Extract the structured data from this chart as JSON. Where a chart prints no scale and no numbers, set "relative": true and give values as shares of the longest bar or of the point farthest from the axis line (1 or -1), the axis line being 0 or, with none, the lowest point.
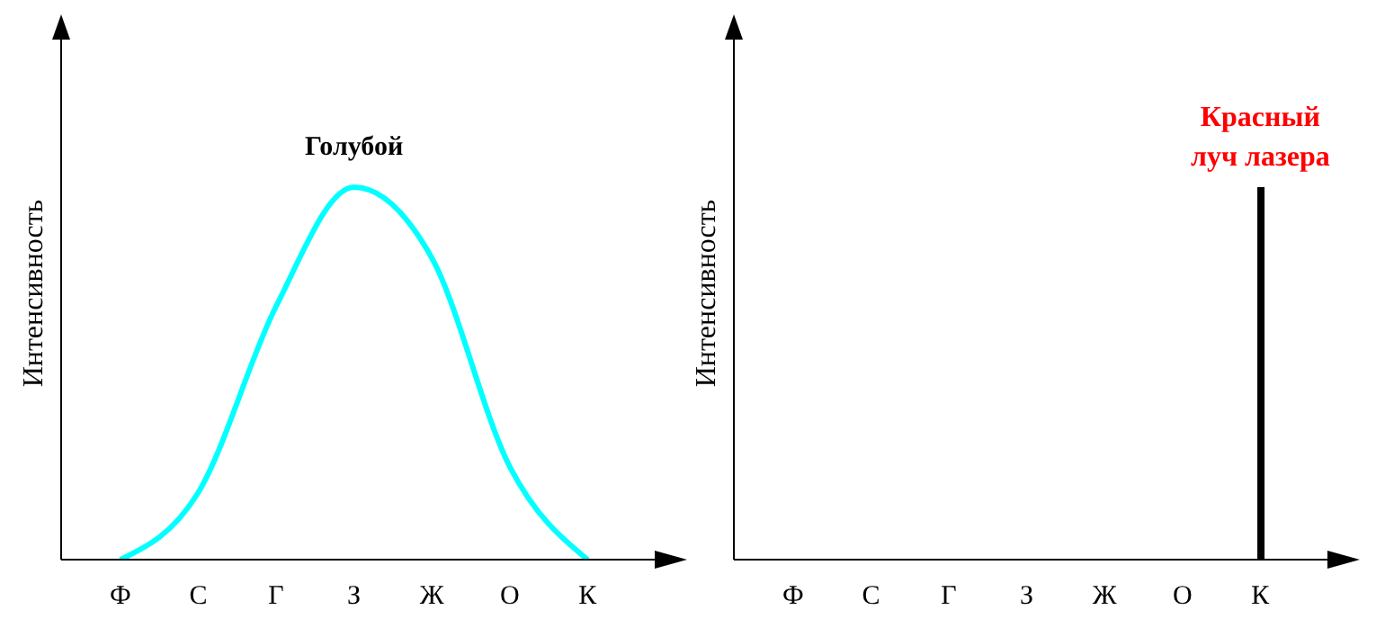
{
  "chart_data": [
    {
      "type": "line",
      "ylabel": "Интенсивность",
      "categories": [
        "Ф",
        "С",
        "Г",
        "З",
        "Ж",
        "О",
        "К"
      ],
      "relative": true,
      "series": [
        {
          "name": "Голубой",
          "color": "#00ffff",
          "values": [
            0,
            0.18,
            0.68,
            1,
            0.81,
            0.25,
            0
          ]
        }
      ]
    },
    {
      "type": "bar",
      "ylabel": "Интенсивность",
      "categories": [
        "Ф",
        "С",
        "Г",
        "З",
        "Ж",
        "О",
        "К"
      ],
      "relative": true,
      "series": [
        {
          "color": "#000000",
          "values": [
            null,
            null,
            null,
            null,
            null,
            null,
            1
          ]
        }
      ],
      "annotations": [
        {
          "text": "Красный луч лазера",
          "x": "К",
          "y": 1
        }
      ]
    }
  ]
}
